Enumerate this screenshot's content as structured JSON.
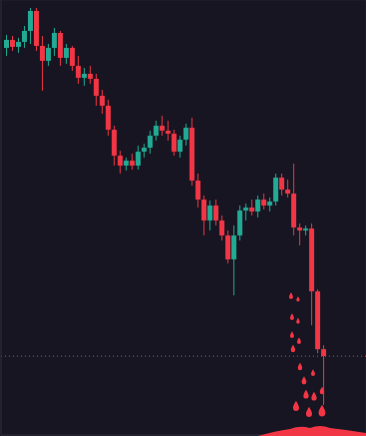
{
  "chart_data": {
    "type": "candlestick",
    "x": [
      1,
      2,
      3,
      4,
      5,
      6,
      7,
      8,
      9,
      10,
      11,
      12,
      13,
      14,
      15,
      16,
      17,
      18,
      19,
      20,
      21,
      22,
      23,
      24,
      25,
      26,
      27,
      28,
      29,
      30,
      31,
      32,
      33,
      34,
      35,
      36,
      37,
      38,
      39,
      40,
      41,
      42,
      43,
      44,
      45,
      46,
      47,
      48,
      49,
      50,
      51,
      52,
      53,
      54
    ],
    "open": [
      388,
      396,
      389,
      394,
      405,
      425,
      390,
      375,
      388,
      403,
      378,
      388,
      370,
      358,
      362,
      357,
      340,
      330,
      306,
      280,
      270,
      275,
      270,
      284,
      288,
      300,
      310,
      305,
      302,
      284,
      296,
      308,
      255,
      236,
      215,
      230,
      215,
      200,
      176,
      200,
      225,
      228,
      224,
      236,
      230,
      234,
      258,
      246,
      242,
      208,
      205,
      207,
      144,
      86
    ],
    "high": [
      401,
      400,
      398,
      410,
      428,
      428,
      400,
      392,
      408,
      405,
      392,
      390,
      380,
      368,
      370,
      362,
      346,
      336,
      310,
      285,
      278,
      282,
      290,
      292,
      305,
      315,
      320,
      315,
      306,
      300,
      312,
      318,
      262,
      240,
      235,
      236,
      220,
      205,
      210,
      230,
      232,
      236,
      240,
      242,
      238,
      262,
      262,
      256,
      272,
      212,
      210,
      212,
      146,
      90
    ],
    "low": [
      380,
      385,
      383,
      388,
      392,
      385,
      345,
      370,
      380,
      370,
      372,
      365,
      352,
      350,
      352,
      330,
      322,
      300,
      270,
      262,
      265,
      266,
      266,
      278,
      282,
      295,
      300,
      295,
      280,
      278,
      290,
      250,
      228,
      200,
      205,
      210,
      195,
      172,
      140,
      195,
      215,
      220,
      218,
      226,
      224,
      230,
      240,
      238,
      200,
      190,
      200,
      110,
      82,
      30
    ],
    "close": [
      396,
      389,
      394,
      405,
      425,
      390,
      375,
      388,
      403,
      378,
      388,
      370,
      358,
      362,
      357,
      340,
      330,
      306,
      280,
      270,
      275,
      270,
      284,
      288,
      300,
      310,
      305,
      302,
      284,
      296,
      308,
      255,
      236,
      215,
      230,
      215,
      200,
      176,
      200,
      225,
      228,
      224,
      236,
      230,
      234,
      258,
      246,
      242,
      208,
      205,
      207,
      144,
      86,
      79
    ],
    "colors": [
      "#22ab94",
      "#f23645",
      "#22ab94",
      "#22ab94",
      "#22ab94",
      "#f23645",
      "#f23645",
      "#22ab94",
      "#22ab94",
      "#f23645",
      "#22ab94",
      "#f23645",
      "#f23645",
      "#22ab94",
      "#f23645",
      "#f23645",
      "#f23645",
      "#f23645",
      "#f23645",
      "#f23645",
      "#22ab94",
      "#f23645",
      "#22ab94",
      "#22ab94",
      "#22ab94",
      "#22ab94",
      "#f23645",
      "#f23645",
      "#f23645",
      "#22ab94",
      "#22ab94",
      "#f23645",
      "#f23645",
      "#f23645",
      "#22ab94",
      "#f23645",
      "#f23645",
      "#f23645",
      "#22ab94",
      "#22ab94",
      "#22ab94",
      "#f23645",
      "#22ab94",
      "#f23645",
      "#22ab94",
      "#22ab94",
      "#f23645",
      "#f23645",
      "#f23645",
      "#f23645",
      "#22ab94",
      "#f23645",
      "#f23645",
      "#f23645"
    ],
    "xlim": [
      0,
      61
    ],
    "ylim": [
      0,
      436
    ],
    "xticks": [
      12,
      35
    ],
    "yticks": [
      100,
      200,
      300,
      400
    ],
    "grid": true,
    "tick_labels": false
  }
}
